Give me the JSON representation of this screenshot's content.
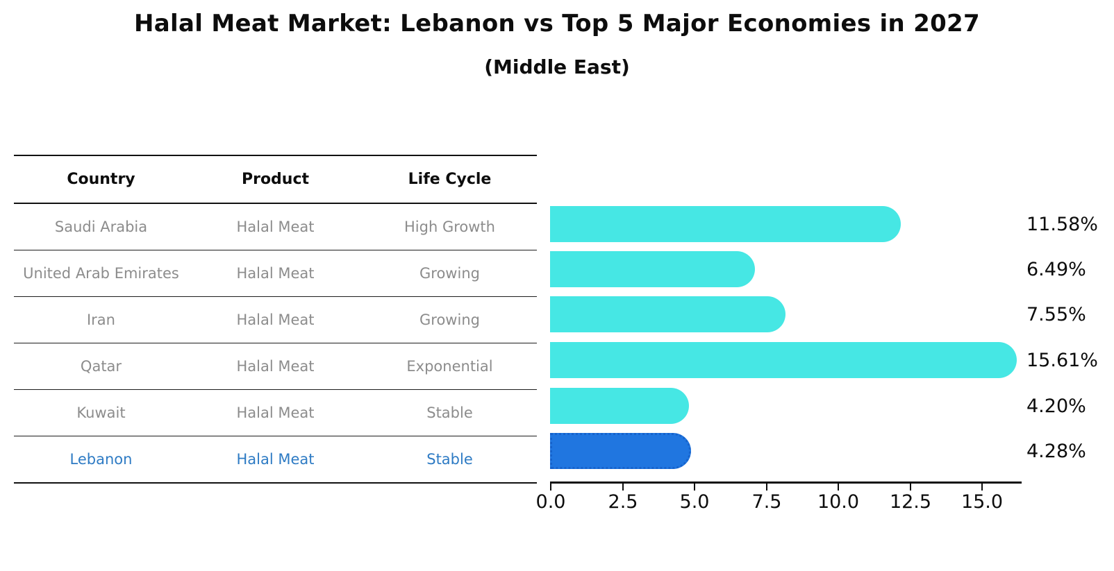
{
  "header": {
    "title": "Halal Meat Market: Lebanon vs Top 5 Major Economies in 2027",
    "subtitle": "(Middle East)"
  },
  "table": {
    "headers": [
      "Country",
      "Product",
      "Life Cycle"
    ],
    "rows": [
      {
        "country": "Saudi Arabia",
        "product": "Halal Meat",
        "life_cycle": "High Growth",
        "highlight": false
      },
      {
        "country": "United Arab Emirates",
        "product": "Halal Meat",
        "life_cycle": "Growing",
        "highlight": false
      },
      {
        "country": "Iran",
        "product": "Halal Meat",
        "life_cycle": "Growing",
        "highlight": false
      },
      {
        "country": "Qatar",
        "product": "Halal Meat",
        "life_cycle": "Exponential",
        "highlight": false
      },
      {
        "country": "Kuwait",
        "product": "Halal Meat",
        "life_cycle": "Stable",
        "highlight": false
      },
      {
        "country": "Lebanon",
        "product": "Halal Meat",
        "life_cycle": "Stable",
        "highlight": true
      }
    ],
    "text_color": "#8c8c8c",
    "highlight_text_color": "#2e7bc4"
  },
  "chart_data": {
    "type": "bar",
    "orientation": "horizontal",
    "title": "Halal Meat Market: Lebanon vs Top 5 Major Economies in 2027",
    "subtitle": "(Middle East)",
    "categories": [
      "Saudi Arabia",
      "United Arab Emirates",
      "Iran",
      "Qatar",
      "Kuwait",
      "Lebanon"
    ],
    "values": [
      11.58,
      6.49,
      7.55,
      15.61,
      4.2,
      4.28
    ],
    "value_labels": [
      "11.58%",
      "6.49%",
      "7.55%",
      "15.61%",
      "4.20%",
      "4.28%"
    ],
    "xlabel": "",
    "ylabel": "",
    "xlim": [
      0,
      16.4
    ],
    "x_ticks": [
      "0.0",
      "2.5",
      "5.0",
      "7.5",
      "10.0",
      "12.5",
      "15.0"
    ],
    "grid": false,
    "legend": false,
    "bar_color": "#46e7e4",
    "highlight_bar_color": "#2076e0",
    "highlight_border_color": "#1663cc",
    "highlight_index": 5
  }
}
